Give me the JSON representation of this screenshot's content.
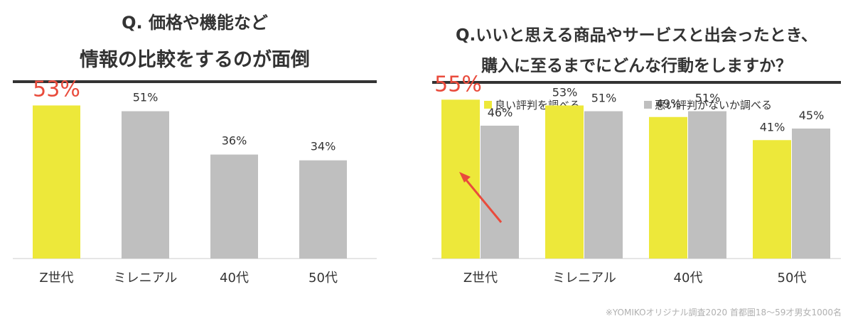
{
  "colors": {
    "yellow": "#ede83a",
    "gray": "#bfbfbf",
    "highlight": "#e94b3c",
    "text": "#333333",
    "rule": "#333333",
    "footnote": "#b0b0b0"
  },
  "left": {
    "title_line1": "Q. 価格や機能など",
    "title_line2": "情報の比較をするのが面倒"
  },
  "right": {
    "title_line1": "Q.いいと思える商品やサービスと出会ったとき、",
    "title_line2": "購入に至るまでにどんな行動をしますか？"
  },
  "footnote": "※YOMIKOオリジナル調査2020 首都圏18〜59才男女1000名",
  "chart_data": [
    {
      "type": "bar",
      "categories": [
        "Z世代",
        "ミレニアル",
        "40代",
        "50代"
      ],
      "values": [
        53,
        51,
        36,
        34
      ],
      "value_labels": [
        "53%",
        "51%",
        "36%",
        "34%"
      ],
      "highlight_index": 0,
      "ylim": [
        0,
        60
      ],
      "grid": false,
      "legend": "none"
    },
    {
      "type": "bar",
      "categories": [
        "Z世代",
        "ミレニアル",
        "40代",
        "50代"
      ],
      "series": [
        {
          "name": "良い評判を調べる",
          "values": [
            55,
            53,
            49,
            41
          ],
          "labels": [
            "55%",
            "53%",
            "49%",
            "41%"
          ],
          "color": "#ede83a"
        },
        {
          "name": "悪い評判がないか調べる",
          "values": [
            46,
            51,
            51,
            45
          ],
          "labels": [
            "46%",
            "51%",
            "51%",
            "45%"
          ],
          "color": "#bfbfbf"
        }
      ],
      "highlight": {
        "series": 0,
        "index": 0
      },
      "annotation": "arrow",
      "ylim": [
        0,
        60
      ],
      "grid": false,
      "legend": "top"
    }
  ]
}
